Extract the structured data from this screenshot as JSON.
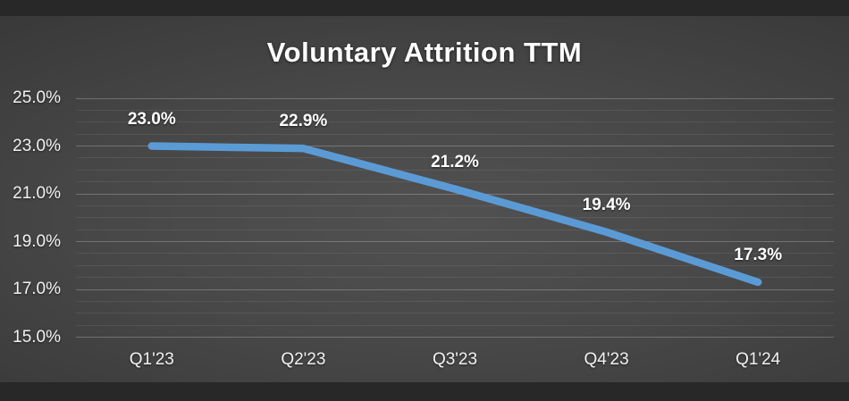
{
  "chart_data": {
    "type": "line",
    "title": "Voluntary Attrition TTM",
    "categories": [
      "Q1'23",
      "Q2'23",
      "Q3'23",
      "Q4'23",
      "Q1'24"
    ],
    "values": [
      23.0,
      22.9,
      21.2,
      19.4,
      17.3
    ],
    "data_labels": [
      "23.0%",
      "22.9%",
      "21.2%",
      "19.4%",
      "17.3%"
    ],
    "series_name": "Voluntary Attrition TTM",
    "xlabel": "",
    "ylabel": "",
    "ylim": [
      15,
      25
    ],
    "y_major_step": 2,
    "y_minor_step": 0.5,
    "y_tick_labels": [
      "25.0%",
      "23.0%",
      "21.0%",
      "19.0%",
      "17.0%",
      "15.0%"
    ],
    "grid": "horizontal major+minor, no vertical gridlines",
    "legend": "none",
    "line_color": "#5B9BD5",
    "background_theme": "dark gradient",
    "text_color": "#FFFFFF"
  }
}
